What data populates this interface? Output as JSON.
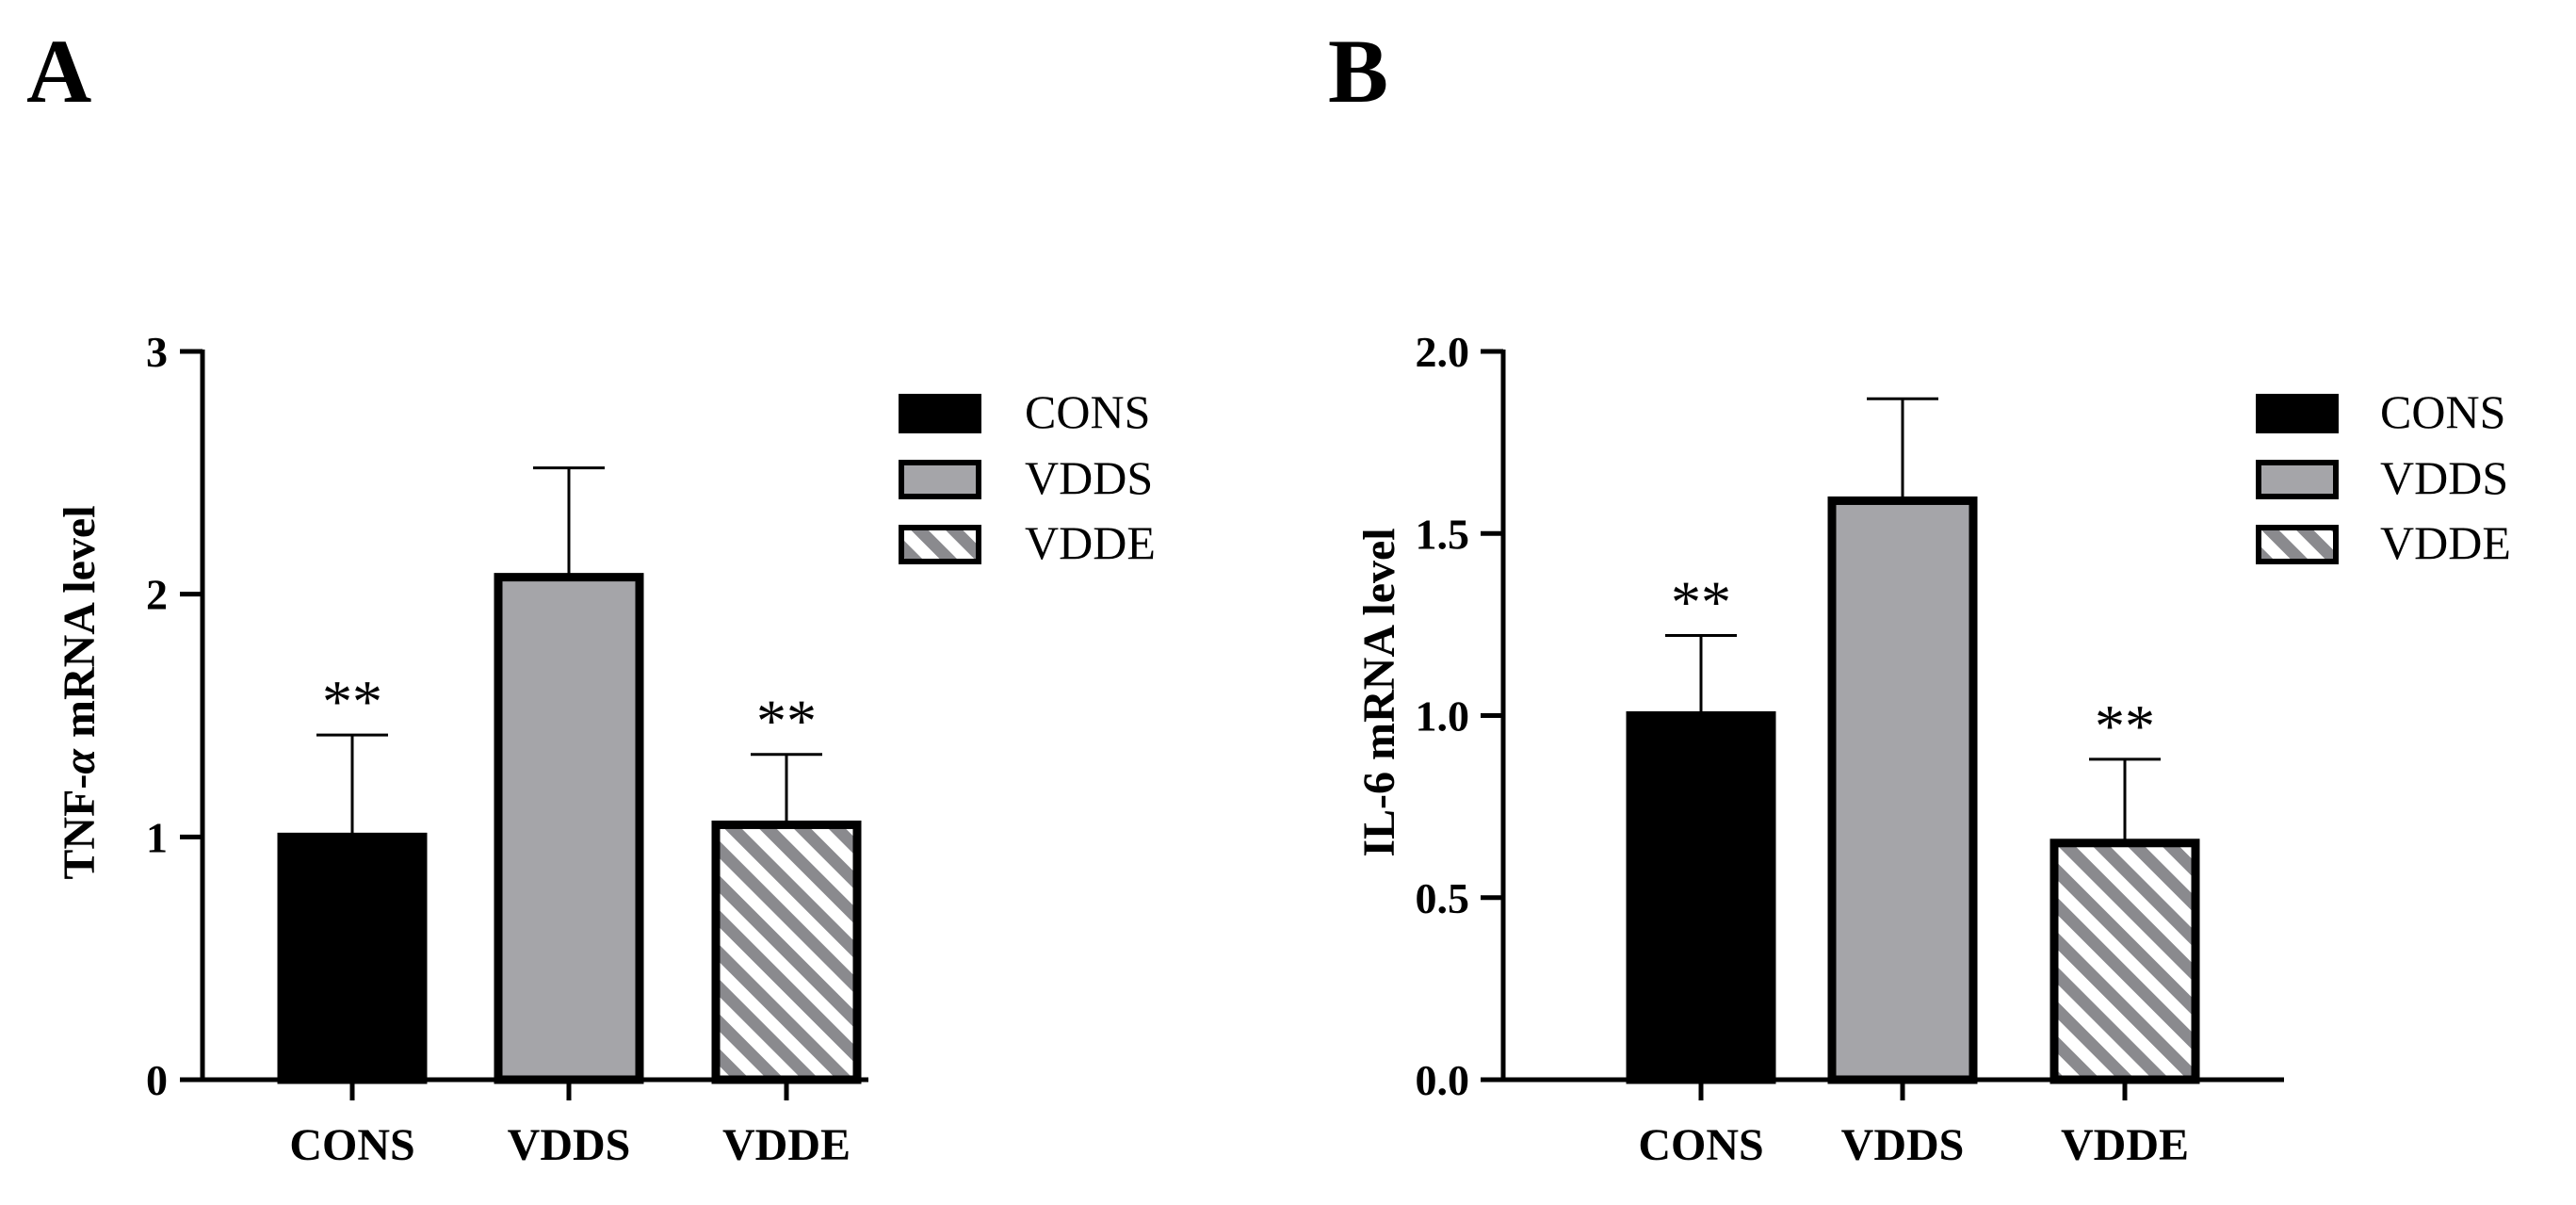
{
  "colors": {
    "cons": "#000000",
    "vdds": "#a5a5a9",
    "vdde_stripe": "#8a8a8e",
    "vdde_bg": "#ffffff",
    "axis": "#000000"
  },
  "legend": {
    "items": [
      {
        "label": "CONS",
        "fill": "solid-black"
      },
      {
        "label": "VDDS",
        "fill": "solid-gray"
      },
      {
        "label": "VDDE",
        "fill": "hatched"
      }
    ]
  },
  "chart_data": [
    {
      "panel": "A",
      "type": "bar",
      "title": "",
      "ylabel_prefix": "TNF-",
      "ylabel_greek": "α",
      "ylabel_suffix": " mRNA level",
      "categories": [
        "CONS",
        "VDDS",
        "VDDE"
      ],
      "values": [
        1.0,
        2.07,
        1.05
      ],
      "errors": [
        0.42,
        0.45,
        0.29
      ],
      "significance": [
        "**",
        "",
        "**"
      ],
      "ylim": [
        0,
        3
      ],
      "yticks": [
        0,
        1,
        2,
        3
      ],
      "ytick_labels": [
        "0",
        "1",
        "2",
        "3"
      ],
      "legend_position": "right"
    },
    {
      "panel": "B",
      "type": "bar",
      "title": "",
      "ylabel_prefix": "IL-6 mRNA level",
      "ylabel_greek": "",
      "ylabel_suffix": "",
      "categories": [
        "CONS",
        "VDDS",
        "VDDE"
      ],
      "values": [
        1.0,
        1.59,
        0.65
      ],
      "errors": [
        0.22,
        0.28,
        0.23
      ],
      "significance": [
        "**",
        "",
        "**"
      ],
      "ylim": [
        0,
        2.0
      ],
      "yticks": [
        0,
        0.5,
        1.0,
        1.5,
        2.0
      ],
      "ytick_labels": [
        "0.0",
        "0.5",
        "1.0",
        "1.5",
        "2.0"
      ],
      "legend_position": "right"
    }
  ]
}
